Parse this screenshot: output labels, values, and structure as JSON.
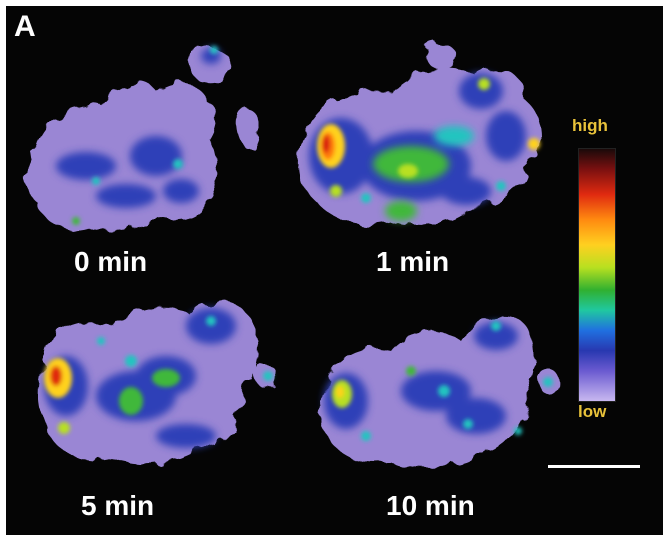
{
  "figure": {
    "panel_label": "A",
    "panels": [
      {
        "id": "p0",
        "time_label": "0 min"
      },
      {
        "id": "p1",
        "time_label": "1 min"
      },
      {
        "id": "p5",
        "time_label": "5 min"
      },
      {
        "id": "p10",
        "time_label": "10 min"
      }
    ],
    "colorbar": {
      "high_label": "high",
      "low_label": "low",
      "label_color": "#e8c23a"
    },
    "colors": {
      "background": "#050505",
      "low": "#a48ad8",
      "mid_low": "#2f3fb8",
      "mid": "#22c4c0",
      "mid_high": "#3fb83a",
      "high": "#ffd21e",
      "peak": "#d91a10"
    }
  }
}
